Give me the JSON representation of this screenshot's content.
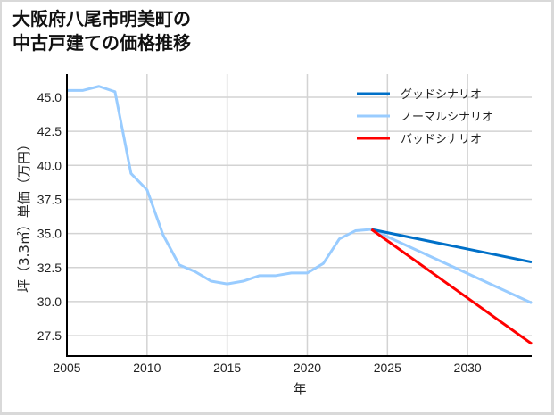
{
  "chart_data": {
    "type": "line",
    "title": "大阪府八尾市明美町の\n中古戸建ての価格推移",
    "xlabel": "年",
    "ylabel": "坪（3.3㎡）単価（万円）",
    "xlim": [
      2005,
      2034
    ],
    "ylim": [
      26.0,
      46.7
    ],
    "x_ticks": [
      2005,
      2010,
      2015,
      2020,
      2025,
      2030
    ],
    "y_ticks": [
      "27.5",
      "30.0",
      "32.5",
      "35.0",
      "37.5",
      "40.0",
      "42.5",
      "45.0"
    ],
    "grid": true,
    "legend_position": "upper right",
    "series": [
      {
        "name": "グッドシナリオ",
        "color": "#0070c8",
        "x": [
          2024,
          2034
        ],
        "values": [
          35.3,
          32.9
        ]
      },
      {
        "name": "ノーマルシナリオ",
        "color": "#99ccff",
        "x": [
          2005,
          2006,
          2007,
          2008,
          2009,
          2010,
          2011,
          2012,
          2013,
          2014,
          2015,
          2016,
          2017,
          2018,
          2019,
          2020,
          2021,
          2022,
          2023,
          2024,
          2034
        ],
        "values": [
          45.5,
          45.5,
          45.8,
          45.4,
          39.4,
          38.2,
          34.9,
          32.7,
          32.2,
          31.5,
          31.3,
          31.5,
          31.9,
          31.9,
          32.1,
          32.1,
          32.8,
          34.6,
          35.2,
          35.3,
          29.9
        ]
      },
      {
        "name": "バッドシナリオ",
        "color": "#ff0000",
        "x": [
          2024,
          2034
        ],
        "values": [
          35.3,
          26.9
        ]
      }
    ]
  },
  "labels": {
    "title": "大阪府八尾市明美町の\n中古戸建ての価格推移",
    "xlabel": "年",
    "ylabel": "坪（3.3㎡）単価（万円）",
    "legend": [
      "グッドシナリオ",
      "ノーマルシナリオ",
      "バッドシナリオ"
    ]
  }
}
